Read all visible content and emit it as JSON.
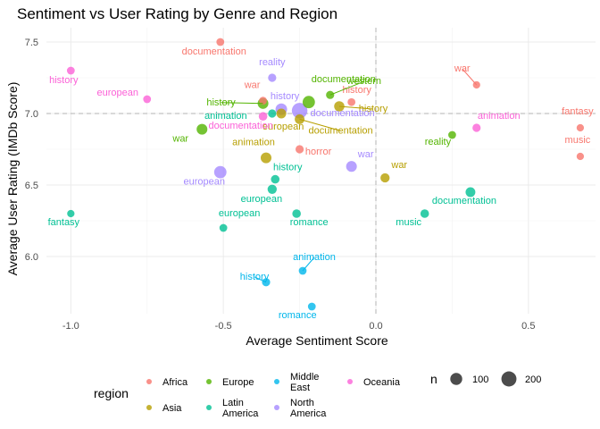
{
  "chart_data": {
    "type": "scatter",
    "title": "Sentiment vs User Rating by Genre and Region",
    "xlabel": "Average Sentiment Score",
    "ylabel": "Average User Rating (IMDb Score)",
    "xlim": [
      -1.08,
      0.72
    ],
    "ylim": [
      5.6,
      7.6
    ],
    "x_ticks": [
      -1.0,
      -0.5,
      0.0,
      0.5
    ],
    "x_tick_labels": [
      "-1.0",
      "-0.5",
      "0.0",
      "0.5"
    ],
    "y_ticks": [
      6.0,
      6.5,
      7.0,
      7.5
    ],
    "y_tick_labels": [
      "6.0",
      "6.5",
      "7.0",
      "7.5"
    ],
    "reference_lines": {
      "x": 0.0,
      "y": 7.0
    },
    "grid": true,
    "colors": {
      "Africa": "#F8766D",
      "Asia": "#B79F00",
      "Europe": "#53B400",
      "Latin America": "#00C094",
      "Middle East": "#00B6EB",
      "North America": "#A58AFF",
      "Oceania": "#FB61D7"
    },
    "points": [
      {
        "region": "Africa",
        "genre": "documentation",
        "x": -0.51,
        "y": 7.5,
        "n": 20
      },
      {
        "region": "Africa",
        "genre": "history",
        "x": -0.08,
        "y": 7.08,
        "n": 20
      },
      {
        "region": "Africa",
        "genre": "war",
        "x": 0.33,
        "y": 7.2,
        "n": 15
      },
      {
        "region": "Africa",
        "genre": "horror",
        "x": -0.25,
        "y": 6.75,
        "n": 25
      },
      {
        "region": "Africa",
        "genre": "music",
        "x": 0.67,
        "y": 6.7,
        "n": 15
      },
      {
        "region": "Africa",
        "genre": "fantasy",
        "x": 0.67,
        "y": 6.9,
        "n": 15
      },
      {
        "region": "Africa",
        "genre": "war",
        "x": -0.37,
        "y": 7.09,
        "n": 20
      },
      {
        "region": "Asia",
        "genre": "history",
        "x": -0.12,
        "y": 7.05,
        "n": 60
      },
      {
        "region": "Asia",
        "genre": "european",
        "x": -0.31,
        "y": 7.0,
        "n": 50
      },
      {
        "region": "Asia",
        "genre": "documentation",
        "x": -0.25,
        "y": 6.96,
        "n": 50
      },
      {
        "region": "Asia",
        "genre": "animation",
        "x": -0.36,
        "y": 6.69,
        "n": 70
      },
      {
        "region": "Asia",
        "genre": "war",
        "x": 0.03,
        "y": 6.55,
        "n": 40
      },
      {
        "region": "Europe",
        "genre": "history",
        "x": -0.37,
        "y": 7.07,
        "n": 70
      },
      {
        "region": "Europe",
        "genre": "documentation",
        "x": -0.22,
        "y": 7.08,
        "n": 110
      },
      {
        "region": "Europe",
        "genre": "war",
        "x": -0.57,
        "y": 6.89,
        "n": 70
      },
      {
        "region": "Europe",
        "genre": "western",
        "x": -0.15,
        "y": 7.13,
        "n": 25
      },
      {
        "region": "Europe",
        "genre": "reality",
        "x": 0.25,
        "y": 6.85,
        "n": 20
      },
      {
        "region": "Latin America",
        "genre": "animation",
        "x": -0.34,
        "y": 7.0,
        "n": 25
      },
      {
        "region": "Latin America",
        "genre": "history",
        "x": -0.33,
        "y": 6.54,
        "n": 30
      },
      {
        "region": "Latin America",
        "genre": "european",
        "x": -0.34,
        "y": 6.47,
        "n": 40
      },
      {
        "region": "Latin America",
        "genre": "romance",
        "x": -0.26,
        "y": 6.3,
        "n": 30
      },
      {
        "region": "Latin America",
        "genre": "documentation",
        "x": 0.31,
        "y": 6.45,
        "n": 50
      },
      {
        "region": "Latin America",
        "genre": "music",
        "x": 0.16,
        "y": 6.3,
        "n": 30
      },
      {
        "region": "Latin America",
        "genre": "fantasy",
        "x": -1.0,
        "y": 6.3,
        "n": 15
      },
      {
        "region": "Latin America",
        "genre": "european",
        "x": -0.5,
        "y": 6.2,
        "n": 20
      },
      {
        "region": "Middle East",
        "genre": "animation",
        "x": -0.24,
        "y": 5.9,
        "n": 20
      },
      {
        "region": "Middle East",
        "genre": "history",
        "x": -0.36,
        "y": 5.82,
        "n": 25
      },
      {
        "region": "Middle East",
        "genre": "romance",
        "x": -0.21,
        "y": 5.65,
        "n": 20
      },
      {
        "region": "North America",
        "genre": "reality",
        "x": -0.34,
        "y": 7.25,
        "n": 25
      },
      {
        "region": "North America",
        "genre": "history",
        "x": -0.31,
        "y": 7.03,
        "n": 90
      },
      {
        "region": "North America",
        "genre": "documentation",
        "x": -0.25,
        "y": 7.02,
        "n": 220
      },
      {
        "region": "North America",
        "genre": "european",
        "x": -0.51,
        "y": 6.59,
        "n": 110
      },
      {
        "region": "North America",
        "genre": "war",
        "x": -0.08,
        "y": 6.63,
        "n": 70
      },
      {
        "region": "Oceania",
        "genre": "history",
        "x": -1.0,
        "y": 7.3,
        "n": 20
      },
      {
        "region": "Oceania",
        "genre": "european",
        "x": -0.75,
        "y": 7.1,
        "n": 20
      },
      {
        "region": "Oceania",
        "genre": "documentation",
        "x": -0.37,
        "y": 6.98,
        "n": 30
      },
      {
        "region": "Oceania",
        "genre": "animation",
        "x": 0.33,
        "y": 6.9,
        "n": 25
      }
    ],
    "legend": {
      "color_title": "region",
      "color_entries": [
        {
          "label": "Africa",
          "region": "Africa"
        },
        {
          "label": "Asia",
          "region": "Asia"
        },
        {
          "label": "Europe",
          "region": "Europe"
        },
        {
          "label": "Latin\nAmerica",
          "region": "Latin America"
        },
        {
          "label": "Middle\nEast",
          "region": "Middle East"
        },
        {
          "label": "North\nAmerica",
          "region": "North America"
        },
        {
          "label": "Oceania",
          "region": "Oceania"
        }
      ],
      "size_title": "n",
      "size_entries": [
        {
          "label": "100",
          "n": 100
        },
        {
          "label": "200",
          "n": 200
        }
      ],
      "placement": "bottom"
    }
  }
}
